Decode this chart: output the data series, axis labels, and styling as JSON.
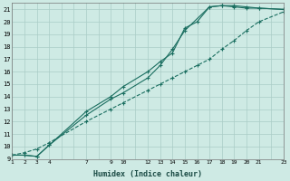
{
  "xlabel": "Humidex (Indice chaleur)",
  "bg_color": "#ceeae4",
  "grid_color": "#aaccc6",
  "line_color": "#1a6e60",
  "xlim": [
    1,
    23
  ],
  "ylim": [
    9,
    21.5
  ],
  "xticks": [
    1,
    2,
    3,
    4,
    7,
    9,
    10,
    12,
    13,
    14,
    15,
    16,
    17,
    18,
    19,
    20,
    21,
    23
  ],
  "yticks": [
    9,
    10,
    11,
    12,
    13,
    14,
    15,
    16,
    17,
    18,
    19,
    20,
    21
  ],
  "line1_x": [
    1,
    2,
    3,
    4,
    7,
    9,
    10,
    12,
    13,
    14,
    15,
    17,
    18,
    19,
    20,
    21,
    23
  ],
  "line1_y": [
    9.3,
    9.3,
    9.2,
    10.1,
    12.5,
    13.8,
    14.3,
    15.5,
    16.5,
    17.8,
    19.3,
    21.2,
    21.3,
    21.2,
    21.1,
    21.1,
    21.0
  ],
  "line2_x": [
    1,
    2,
    3,
    4,
    7,
    9,
    10,
    12,
    13,
    14,
    15,
    16,
    17,
    18,
    19,
    20,
    21,
    23
  ],
  "line2_y": [
    9.3,
    9.3,
    9.2,
    10.1,
    12.8,
    14.0,
    14.8,
    16.0,
    16.8,
    17.5,
    19.5,
    20.0,
    21.2,
    21.3,
    21.3,
    21.2,
    21.1,
    21.0
  ],
  "line3_x": [
    1,
    2,
    3,
    4,
    7,
    9,
    10,
    12,
    13,
    14,
    15,
    16,
    17,
    18,
    19,
    20,
    21,
    23
  ],
  "line3_y": [
    9.3,
    9.5,
    9.8,
    10.3,
    12.0,
    13.0,
    13.5,
    14.5,
    15.0,
    15.5,
    16.0,
    16.5,
    17.0,
    17.8,
    18.5,
    19.3,
    20.0,
    20.8
  ]
}
